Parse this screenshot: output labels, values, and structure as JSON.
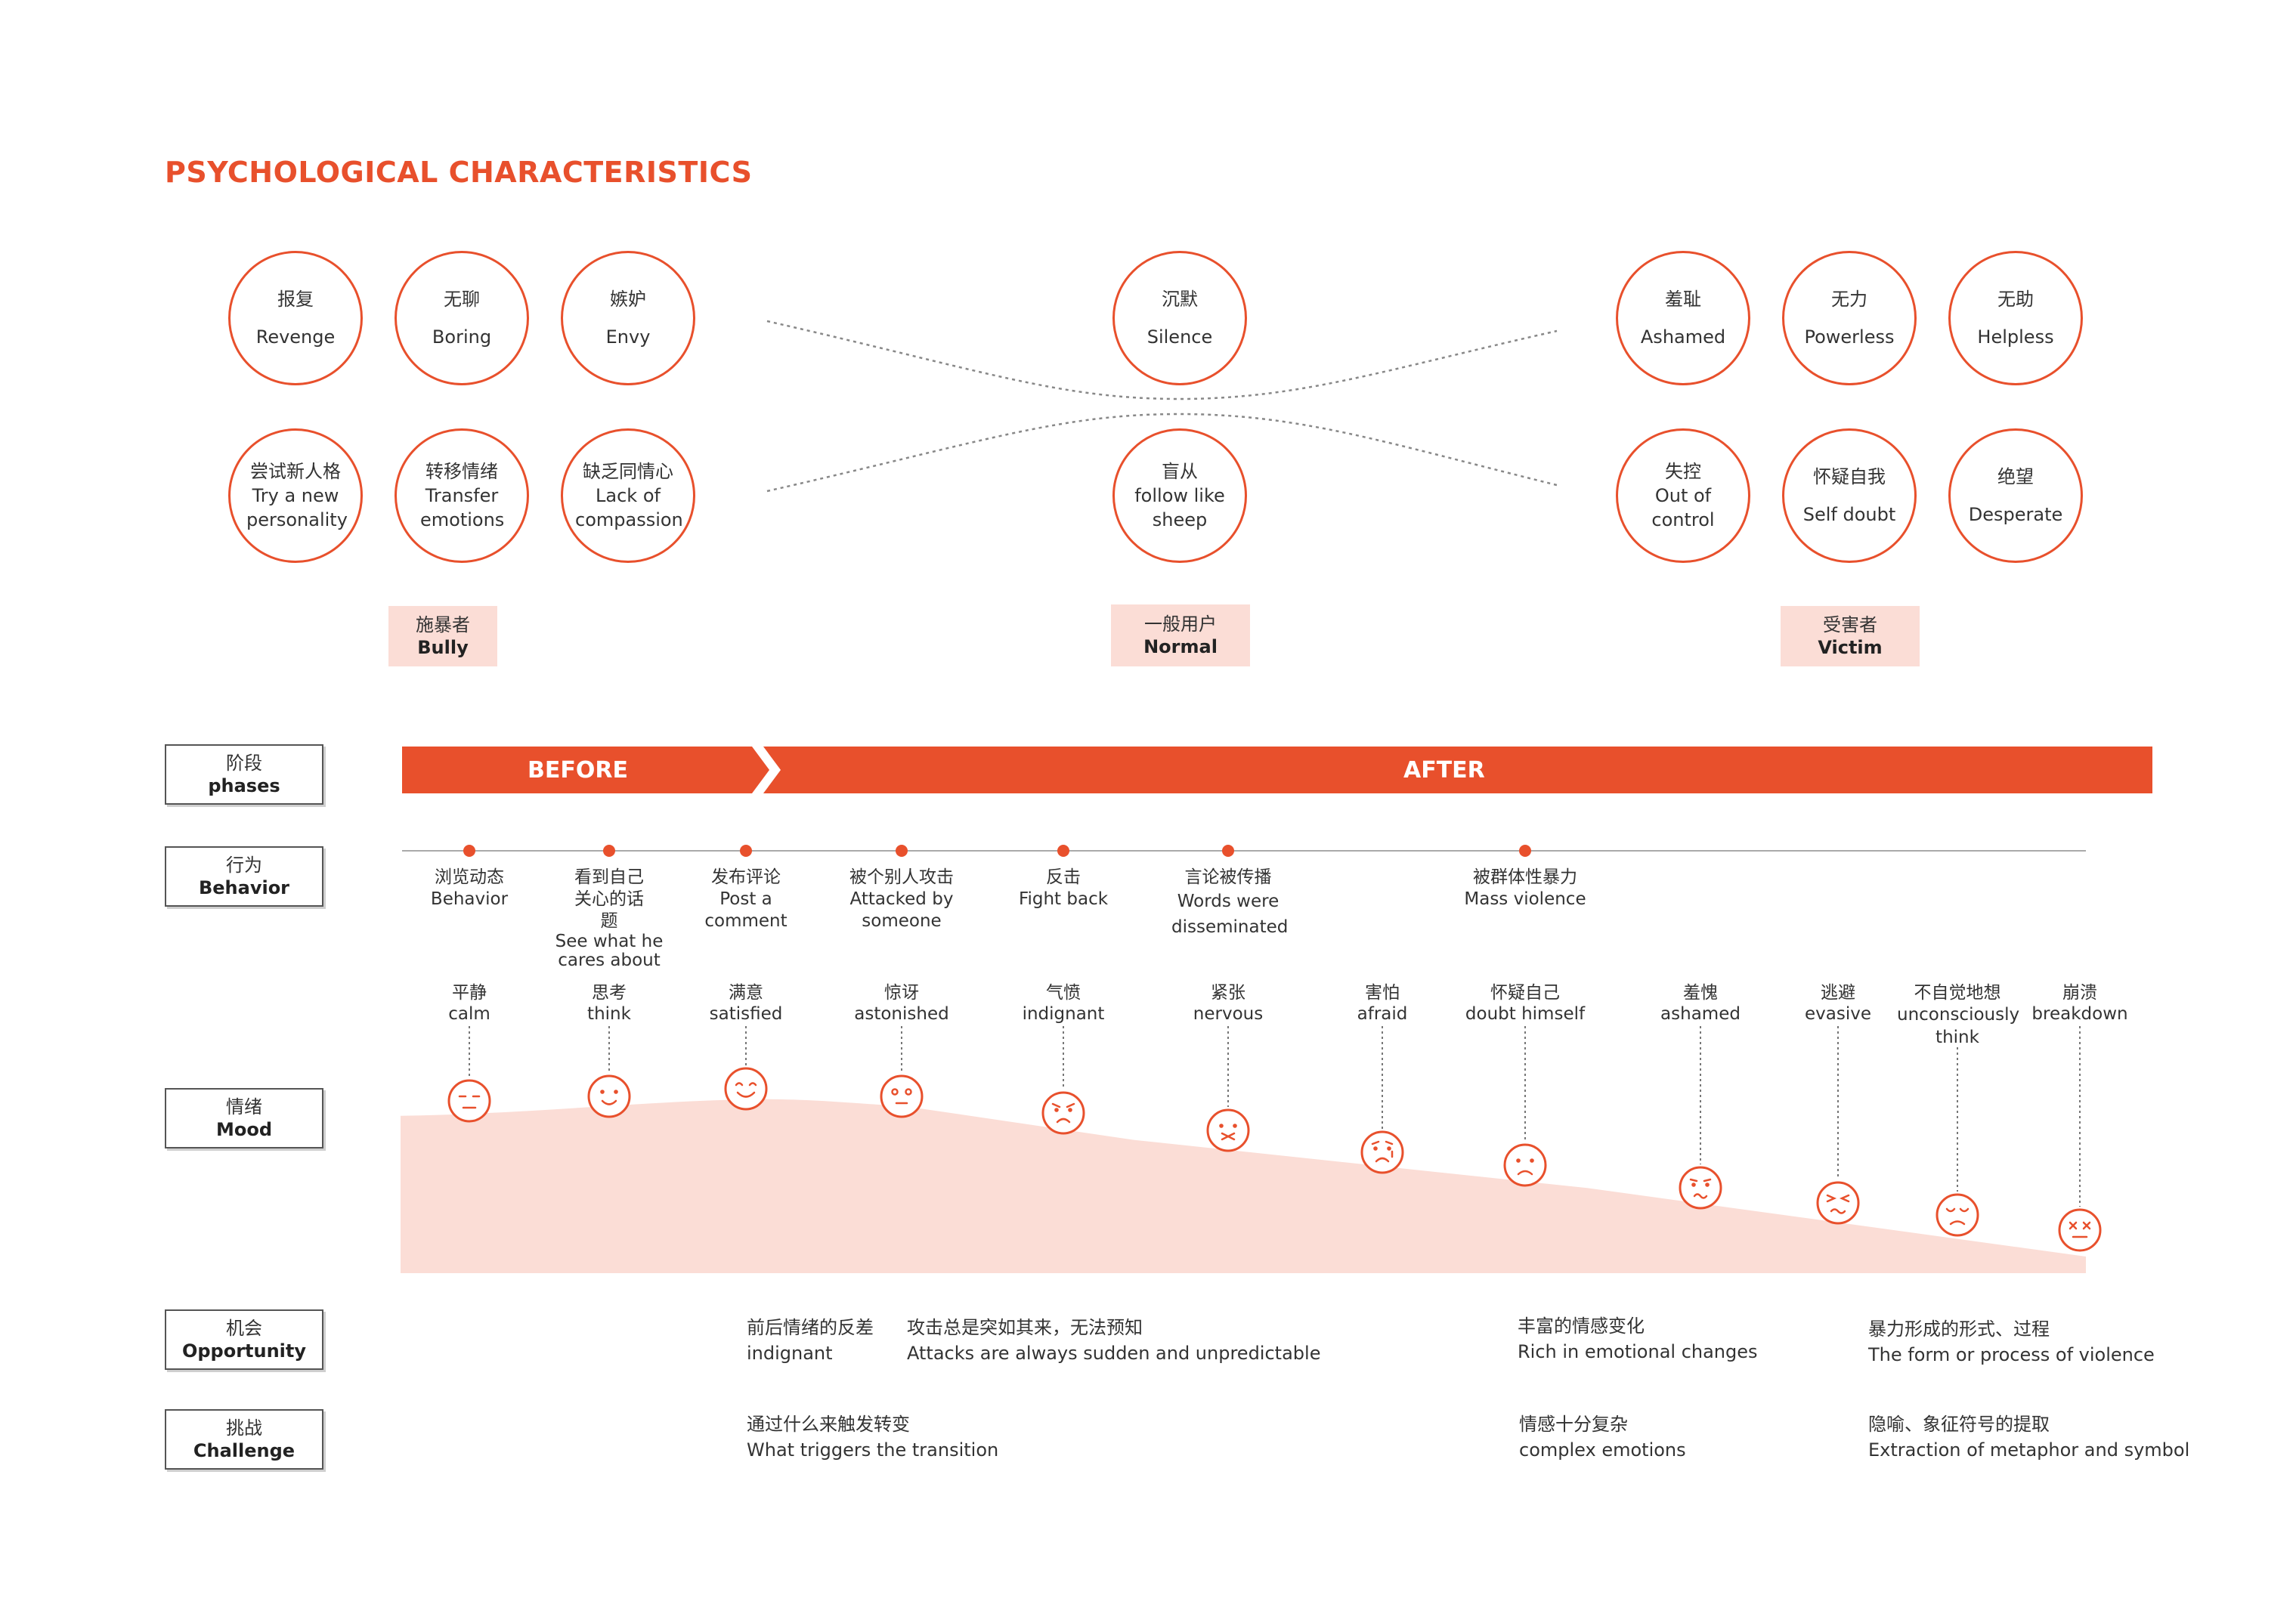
{
  "title": "PSYCHOLOGICAL CHARACTERISTICS",
  "characteristics": {
    "bully": [
      {
        "cn": "报复",
        "en": "Revenge"
      },
      {
        "cn": "无聊",
        "en": "Boring"
      },
      {
        "cn": "嫉妒",
        "en": "Envy"
      },
      {
        "cn": "尝试新人格",
        "en": "Try a new personality"
      },
      {
        "cn": "转移情绪",
        "en": "Transfer emotions"
      },
      {
        "cn": "缺乏同情心",
        "en": "Lack of compassion"
      }
    ],
    "normal": [
      {
        "cn": "沉默",
        "en": "Silence"
      },
      {
        "cn": "盲从",
        "en": "follow like sheep"
      }
    ],
    "victim": [
      {
        "cn": "羞耻",
        "en": "Ashamed"
      },
      {
        "cn": "无力",
        "en": "Powerless"
      },
      {
        "cn": "无助",
        "en": "Helpless"
      },
      {
        "cn": "失控",
        "en": "Out of control"
      },
      {
        "cn": "怀疑自我",
        "en": "Self doubt"
      },
      {
        "cn": "绝望",
        "en": "Desperate"
      }
    ]
  },
  "roles": {
    "bully": {
      "cn": "施暴者",
      "en": "Bully"
    },
    "normal": {
      "cn": "一般用户",
      "en": "Normal"
    },
    "victim": {
      "cn": "受害者",
      "en": "Victim"
    }
  },
  "rows": {
    "phases": {
      "cn": "阶段",
      "en": "phases"
    },
    "behavior": {
      "cn": "行为",
      "en": "Behavior"
    },
    "mood": {
      "cn": "情绪",
      "en": "Mood"
    },
    "opportunity": {
      "cn": "机会",
      "en": "Opportunity"
    },
    "challenge": {
      "cn": "挑战",
      "en": "Challenge"
    }
  },
  "phases": {
    "before": "BEFORE",
    "after": "AFTER"
  },
  "behaviors": [
    {
      "cn": "浏览动态",
      "en": "Behavior"
    },
    {
      "cn": "看到自己关心的话题",
      "en": "See what he cares about"
    },
    {
      "cn": "发布评论",
      "en": "Post a comment"
    },
    {
      "cn": "被个别人攻击",
      "en": "Attacked by someone"
    },
    {
      "cn": "反击",
      "en": "Fight back"
    },
    {
      "cn": "言论被传播",
      "en": "Words were disseminated"
    },
    {
      "cn": "被群体性暴力",
      "en": "Mass violence"
    }
  ],
  "moods": [
    {
      "cn": "平静",
      "en": "calm",
      "face": "neutral-face-icon",
      "level": 0.85
    },
    {
      "cn": "思考",
      "en": "think",
      "face": "smile-face-icon",
      "level": 0.88
    },
    {
      "cn": "满意",
      "en": "satisfied",
      "face": "happy-face-icon",
      "level": 0.93
    },
    {
      "cn": "惊讶",
      "en": "astonished",
      "face": "surprised-face-icon",
      "level": 0.87
    },
    {
      "cn": "气愤",
      "en": "indignant",
      "face": "angry-face-icon",
      "level": 0.75
    },
    {
      "cn": "紧张",
      "en": "nervous",
      "face": "nervous-face-icon",
      "level": 0.66
    },
    {
      "cn": "害怕",
      "en": "afraid",
      "face": "afraid-face-icon",
      "level": 0.52
    },
    {
      "cn": "怀疑自己",
      "en": "doubt himself",
      "face": "sad-face-icon",
      "level": 0.45
    },
    {
      "cn": "羞愧",
      "en": "ashamed",
      "face": "ashamed-face-icon",
      "level": 0.31
    },
    {
      "cn": "逃避",
      "en": "evasive",
      "face": "evasive-face-icon",
      "level": 0.22
    },
    {
      "cn": "不自觉地想",
      "en": "unconsciously think",
      "face": "worried-face-icon",
      "level": 0.15
    },
    {
      "cn": "崩溃",
      "en": "breakdown",
      "face": "breakdown-face-icon",
      "level": 0.1
    }
  ],
  "opportunity": [
    {
      "cn": "前后情绪的反差",
      "en": "indignant"
    },
    {
      "cn": "攻击总是突如其来，无法预知",
      "en": "Attacks are always sudden and unpredictable"
    },
    {
      "cn": "丰富的情感变化",
      "en": "Rich in emotional changes"
    },
    {
      "cn": "暴力形成的形式、过程",
      "en": "The form or process of violence"
    }
  ],
  "challenge": [
    {
      "cn": "通过什么来触发转变",
      "en": "What triggers the transition"
    },
    {
      "cn": "情感十分复杂",
      "en": "complex emotions"
    },
    {
      "cn": "隐喻、象征符号的提取",
      "en": "Extraction of metaphor and symbol"
    }
  ],
  "colors": {
    "accent": "#e8502c",
    "mood_fill": "#fbddd6",
    "role_fill": "#fbddd6"
  }
}
